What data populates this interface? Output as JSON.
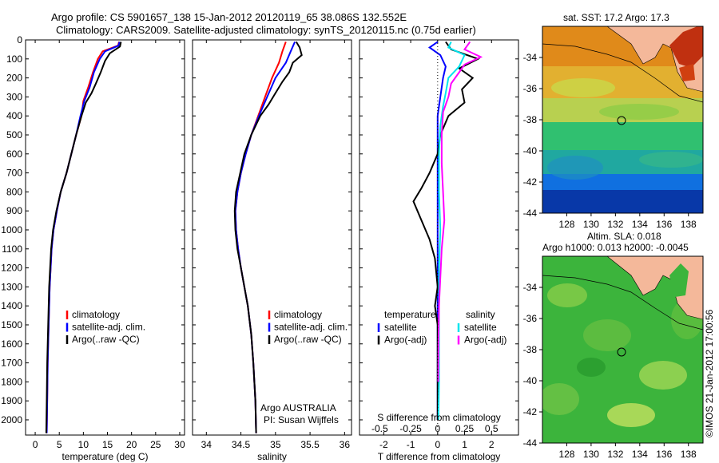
{
  "header": {
    "line1": "Argo profile: CS 5901657_138 15-Jan-2012 20120119_65 38.086S 132.552E",
    "line2": "Climatology: CARS2009. Satellite-adjusted climatology: synTS_20120115.nc (0.75d earlier)"
  },
  "colors": {
    "climatology": "#ff0000",
    "satellite": "#0000ff",
    "argo": "#000000",
    "sal_satellite": "#00e5ee",
    "sal_argo": "#ff00ff",
    "land": "#f4b89a"
  },
  "map_sst": {
    "label": "sat. SST: 17.2 Argo: 17.3"
  },
  "map_sla": {
    "label1": "Altim. SLA: 0.018",
    "label2": "Argo h1000: 0.013 h2000: -0.0045"
  },
  "side_stamp": "©IMOS 21-Jan-2012 17:00:56",
  "chart_data": [
    {
      "type": "line",
      "xlabel": "temperature (deg C)",
      "ylabel": "",
      "xlim": [
        -2,
        31
      ],
      "ylim": [
        2080,
        0
      ],
      "xticks": [
        "0",
        "5",
        "10",
        "15",
        "20",
        "25",
        "30"
      ],
      "yticks": [
        "0",
        "100",
        "200",
        "300",
        "400",
        "500",
        "600",
        "700",
        "800",
        "900",
        "1000",
        "1100",
        "1200",
        "1300",
        "1400",
        "1500",
        "1600",
        "1700",
        "1800",
        "1900",
        "2000"
      ],
      "legend": [
        "climatology",
        "satellite-adj. clim.",
        "Argo(..raw -QC)"
      ],
      "series": [
        {
          "name": "climatology",
          "points": [
            [
              17.4,
              10
            ],
            [
              17.2,
              30
            ],
            [
              14,
              60
            ],
            [
              13,
              100
            ],
            [
              12,
              170
            ],
            [
              11,
              250
            ],
            [
              10,
              320
            ],
            [
              9.6,
              400
            ],
            [
              8.5,
              500
            ],
            [
              7.5,
              600
            ],
            [
              6.5,
              700
            ],
            [
              5.3,
              800
            ],
            [
              4.5,
              900
            ],
            [
              3.8,
              1000
            ],
            [
              3.4,
              1100
            ],
            [
              3,
              1300
            ],
            [
              2.8,
              1500
            ],
            [
              2.6,
              1700
            ],
            [
              2.5,
              1900
            ],
            [
              2.4,
              2070
            ]
          ]
        },
        {
          "name": "satellite-adj. clim.",
          "points": [
            [
              17.5,
              10
            ],
            [
              17.3,
              30
            ],
            [
              14.5,
              60
            ],
            [
              13.4,
              100
            ],
            [
              12.2,
              170
            ],
            [
              11.3,
              250
            ],
            [
              10.2,
              320
            ],
            [
              9.4,
              400
            ],
            [
              8.5,
              500
            ],
            [
              7.5,
              600
            ],
            [
              6.5,
              700
            ],
            [
              5.3,
              800
            ],
            [
              4.5,
              900
            ],
            [
              3.8,
              1000
            ],
            [
              3.4,
              1100
            ],
            [
              3,
              1300
            ],
            [
              2.8,
              1500
            ],
            [
              2.6,
              1700
            ],
            [
              2.5,
              1900
            ],
            [
              2.4,
              2070
            ]
          ]
        },
        {
          "name": "Argo(..raw -QC)",
          "points": [
            [
              17.8,
              10
            ],
            [
              17.6,
              35
            ],
            [
              15.5,
              70
            ],
            [
              14.5,
              110
            ],
            [
              13.6,
              170
            ],
            [
              12.6,
              230
            ],
            [
              11.7,
              280
            ],
            [
              10.5,
              330
            ],
            [
              9.6,
              400
            ],
            [
              8.5,
              500
            ],
            [
              7.5,
              600
            ],
            [
              6.5,
              700
            ],
            [
              5.3,
              800
            ],
            [
              4.4,
              900
            ],
            [
              3.7,
              1000
            ],
            [
              3.3,
              1100
            ],
            [
              2.9,
              1300
            ],
            [
              2.7,
              1500
            ],
            [
              2.5,
              1700
            ],
            [
              2.4,
              1900
            ],
            [
              2.3,
              2070
            ]
          ]
        }
      ]
    },
    {
      "type": "line",
      "xlabel": "salinity",
      "ylabel": "",
      "xlim": [
        33.8,
        36.1
      ],
      "ylim": [
        2080,
        0
      ],
      "xticks": [
        "34",
        "34.5",
        "35",
        "35.5",
        "36"
      ],
      "legend": [
        "climatology",
        "satellite-adj. clim.",
        "Argo(..raw -QC)"
      ],
      "annotation": [
        "Argo AUSTRALIA",
        "PI: Susan Wijffels"
      ],
      "series": [
        {
          "name": "climatology",
          "points": [
            [
              35.15,
              10
            ],
            [
              35.1,
              60
            ],
            [
              35.05,
              120
            ],
            [
              34.95,
              200
            ],
            [
              34.85,
              300
            ],
            [
              34.75,
              400
            ],
            [
              34.65,
              500
            ],
            [
              34.57,
              600
            ],
            [
              34.5,
              700
            ],
            [
              34.45,
              800
            ],
            [
              34.42,
              900
            ],
            [
              34.43,
              1000
            ],
            [
              34.46,
              1100
            ],
            [
              34.5,
              1200
            ],
            [
              34.55,
              1300
            ],
            [
              34.6,
              1400
            ],
            [
              34.65,
              1550
            ],
            [
              34.68,
              1700
            ],
            [
              34.71,
              1900
            ],
            [
              34.72,
              2070
            ]
          ]
        },
        {
          "name": "satellite-adj. clim.",
          "points": [
            [
              35.28,
              10
            ],
            [
              35.22,
              60
            ],
            [
              35.15,
              120
            ],
            [
              35.0,
              200
            ],
            [
              34.88,
              300
            ],
            [
              34.76,
              400
            ],
            [
              34.65,
              500
            ],
            [
              34.57,
              600
            ],
            [
              34.5,
              700
            ],
            [
              34.45,
              800
            ],
            [
              34.42,
              900
            ],
            [
              34.43,
              1000
            ],
            [
              34.46,
              1100
            ],
            [
              34.5,
              1200
            ],
            [
              34.55,
              1300
            ],
            [
              34.6,
              1400
            ],
            [
              34.65,
              1550
            ],
            [
              34.68,
              1700
            ],
            [
              34.71,
              1900
            ],
            [
              34.72,
              2070
            ]
          ]
        },
        {
          "name": "Argo(..raw -QC)",
          "points": [
            [
              35.3,
              10
            ],
            [
              35.35,
              40
            ],
            [
              35.38,
              80
            ],
            [
              35.25,
              120
            ],
            [
              35.2,
              170
            ],
            [
              35.1,
              220
            ],
            [
              35.0,
              280
            ],
            [
              34.9,
              340
            ],
            [
              34.78,
              400
            ],
            [
              34.65,
              500
            ],
            [
              34.55,
              600
            ],
            [
              34.49,
              700
            ],
            [
              34.43,
              800
            ],
            [
              34.41,
              900
            ],
            [
              34.42,
              1000
            ],
            [
              34.45,
              1100
            ],
            [
              34.5,
              1200
            ],
            [
              34.55,
              1300
            ],
            [
              34.6,
              1400
            ],
            [
              34.65,
              1550
            ],
            [
              34.68,
              1700
            ],
            [
              34.71,
              1900
            ],
            [
              34.72,
              2070
            ]
          ]
        }
      ]
    },
    {
      "type": "line",
      "xlabel": "T difference from climatology",
      "title2": "S difference from climatology",
      "xlim": [
        -2.9,
        3
      ],
      "ylim": [
        2080,
        0
      ],
      "xticks": [
        "-2",
        "-1",
        "0",
        "1",
        "2"
      ],
      "xticks_top": [
        "-0.5",
        "-0.25",
        "0",
        "0.25",
        "0.5"
      ],
      "legend_left": {
        "title": "temperature",
        "items": [
          "satellite",
          "Argo(-adj)"
        ]
      },
      "legend_right": {
        "title": "salinity",
        "items": [
          "satellite",
          "Argo(-adj)"
        ]
      },
      "series": [
        {
          "name": "T satellite",
          "points": [
            [
              0,
              10
            ],
            [
              -0.3,
              40
            ],
            [
              0.1,
              80
            ],
            [
              0.3,
              140
            ],
            [
              0.2,
              200
            ],
            [
              0.1,
              300
            ],
            [
              0,
              400
            ],
            [
              0,
              600
            ],
            [
              0,
              800
            ],
            [
              0,
              1000
            ],
            [
              0,
              1500
            ],
            [
              0,
              2000
            ]
          ]
        },
        {
          "name": "T Argo(-adj)",
          "points": [
            [
              0.3,
              10
            ],
            [
              0.5,
              50
            ],
            [
              1.5,
              100
            ],
            [
              0.8,
              150
            ],
            [
              1.3,
              200
            ],
            [
              0.9,
              260
            ],
            [
              1.0,
              330
            ],
            [
              0.4,
              400
            ],
            [
              0.1,
              500
            ],
            [
              0,
              600
            ],
            [
              -0.3,
              700
            ],
            [
              -0.6,
              780
            ],
            [
              -0.9,
              850
            ],
            [
              -0.6,
              950
            ],
            [
              -0.3,
              1050
            ],
            [
              -0.1,
              1150
            ],
            [
              0,
              1300
            ],
            [
              -0.1,
              1400
            ],
            [
              0,
              1500
            ],
            [
              0,
              1700
            ],
            [
              0,
              2000
            ]
          ]
        },
        {
          "name": "S satellite",
          "points": [
            [
              0.5,
              10
            ],
            [
              0.4,
              40
            ],
            [
              1.0,
              80
            ],
            [
              0.8,
              140
            ],
            [
              0.4,
              200
            ],
            [
              0.3,
              280
            ],
            [
              0.2,
              350
            ],
            [
              0.1,
              450
            ],
            [
              0.05,
              600
            ],
            [
              0.05,
              800
            ],
            [
              0.1,
              1000
            ],
            [
              0.05,
              1200
            ],
            [
              0.05,
              1500
            ],
            [
              0.05,
              1800
            ],
            [
              0.03,
              2000
            ]
          ]
        },
        {
          "name": "S Argo(-adj)",
          "points": [
            [
              1.2,
              10
            ],
            [
              1.0,
              50
            ],
            [
              1.6,
              90
            ],
            [
              1.0,
              130
            ],
            [
              0.8,
              170
            ],
            [
              0.5,
              230
            ],
            [
              0.4,
              300
            ],
            [
              0.2,
              380
            ],
            [
              0.15,
              500
            ],
            [
              0.15,
              650
            ],
            [
              0.2,
              800
            ],
            [
              0.25,
              950
            ],
            [
              0.15,
              1100
            ],
            [
              0.1,
              1250
            ],
            [
              0.05,
              1400
            ],
            [
              0.03,
              1600
            ],
            [
              0.02,
              1800
            ]
          ]
        }
      ]
    }
  ]
}
